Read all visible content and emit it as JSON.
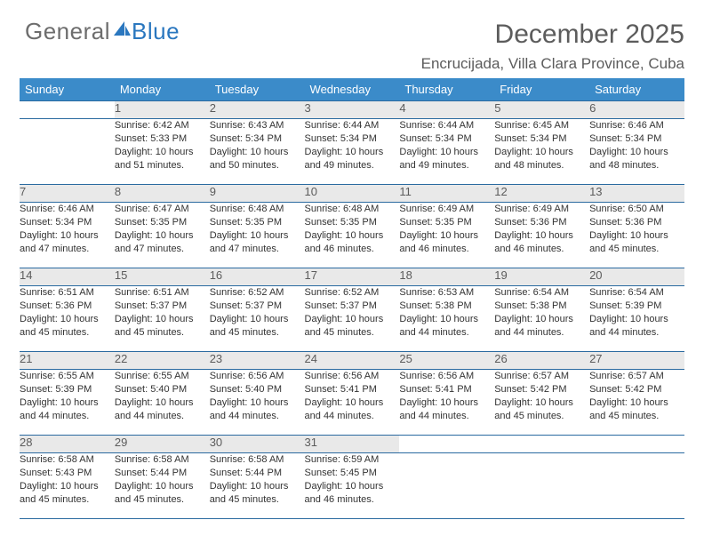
{
  "brand": {
    "part1": "General",
    "part2": "Blue"
  },
  "title": "December 2025",
  "location": "Encrucijada, Villa Clara Province, Cuba",
  "colors": {
    "header_bg": "#3b8bc9",
    "header_fg": "#ffffff",
    "daynum_bg": "#e9e9e9",
    "rule": "#2a6aa0",
    "text": "#333333",
    "muted": "#5c5c5c",
    "logo_gray": "#6d6d6d",
    "logo_blue": "#2a77bf",
    "page_bg": "#ffffff"
  },
  "font": {
    "title_size": 30,
    "location_size": 17,
    "th_size": 13,
    "cell_size": 11,
    "daynum_size": 13
  },
  "weekdays": [
    "Sunday",
    "Monday",
    "Tuesday",
    "Wednesday",
    "Thursday",
    "Friday",
    "Saturday"
  ],
  "weeks": [
    [
      {
        "day": "",
        "l1": "",
        "l2": "",
        "l3": ""
      },
      {
        "day": "1",
        "l1": "Sunrise: 6:42 AM",
        "l2": "Sunset: 5:33 PM",
        "l3": "Daylight: 10 hours and 51 minutes."
      },
      {
        "day": "2",
        "l1": "Sunrise: 6:43 AM",
        "l2": "Sunset: 5:34 PM",
        "l3": "Daylight: 10 hours and 50 minutes."
      },
      {
        "day": "3",
        "l1": "Sunrise: 6:44 AM",
        "l2": "Sunset: 5:34 PM",
        "l3": "Daylight: 10 hours and 49 minutes."
      },
      {
        "day": "4",
        "l1": "Sunrise: 6:44 AM",
        "l2": "Sunset: 5:34 PM",
        "l3": "Daylight: 10 hours and 49 minutes."
      },
      {
        "day": "5",
        "l1": "Sunrise: 6:45 AM",
        "l2": "Sunset: 5:34 PM",
        "l3": "Daylight: 10 hours and 48 minutes."
      },
      {
        "day": "6",
        "l1": "Sunrise: 6:46 AM",
        "l2": "Sunset: 5:34 PM",
        "l3": "Daylight: 10 hours and 48 minutes."
      }
    ],
    [
      {
        "day": "7",
        "l1": "Sunrise: 6:46 AM",
        "l2": "Sunset: 5:34 PM",
        "l3": "Daylight: 10 hours and 47 minutes."
      },
      {
        "day": "8",
        "l1": "Sunrise: 6:47 AM",
        "l2": "Sunset: 5:35 PM",
        "l3": "Daylight: 10 hours and 47 minutes."
      },
      {
        "day": "9",
        "l1": "Sunrise: 6:48 AM",
        "l2": "Sunset: 5:35 PM",
        "l3": "Daylight: 10 hours and 47 minutes."
      },
      {
        "day": "10",
        "l1": "Sunrise: 6:48 AM",
        "l2": "Sunset: 5:35 PM",
        "l3": "Daylight: 10 hours and 46 minutes."
      },
      {
        "day": "11",
        "l1": "Sunrise: 6:49 AM",
        "l2": "Sunset: 5:35 PM",
        "l3": "Daylight: 10 hours and 46 minutes."
      },
      {
        "day": "12",
        "l1": "Sunrise: 6:49 AM",
        "l2": "Sunset: 5:36 PM",
        "l3": "Daylight: 10 hours and 46 minutes."
      },
      {
        "day": "13",
        "l1": "Sunrise: 6:50 AM",
        "l2": "Sunset: 5:36 PM",
        "l3": "Daylight: 10 hours and 45 minutes."
      }
    ],
    [
      {
        "day": "14",
        "l1": "Sunrise: 6:51 AM",
        "l2": "Sunset: 5:36 PM",
        "l3": "Daylight: 10 hours and 45 minutes."
      },
      {
        "day": "15",
        "l1": "Sunrise: 6:51 AM",
        "l2": "Sunset: 5:37 PM",
        "l3": "Daylight: 10 hours and 45 minutes."
      },
      {
        "day": "16",
        "l1": "Sunrise: 6:52 AM",
        "l2": "Sunset: 5:37 PM",
        "l3": "Daylight: 10 hours and 45 minutes."
      },
      {
        "day": "17",
        "l1": "Sunrise: 6:52 AM",
        "l2": "Sunset: 5:37 PM",
        "l3": "Daylight: 10 hours and 45 minutes."
      },
      {
        "day": "18",
        "l1": "Sunrise: 6:53 AM",
        "l2": "Sunset: 5:38 PM",
        "l3": "Daylight: 10 hours and 44 minutes."
      },
      {
        "day": "19",
        "l1": "Sunrise: 6:54 AM",
        "l2": "Sunset: 5:38 PM",
        "l3": "Daylight: 10 hours and 44 minutes."
      },
      {
        "day": "20",
        "l1": "Sunrise: 6:54 AM",
        "l2": "Sunset: 5:39 PM",
        "l3": "Daylight: 10 hours and 44 minutes."
      }
    ],
    [
      {
        "day": "21",
        "l1": "Sunrise: 6:55 AM",
        "l2": "Sunset: 5:39 PM",
        "l3": "Daylight: 10 hours and 44 minutes."
      },
      {
        "day": "22",
        "l1": "Sunrise: 6:55 AM",
        "l2": "Sunset: 5:40 PM",
        "l3": "Daylight: 10 hours and 44 minutes."
      },
      {
        "day": "23",
        "l1": "Sunrise: 6:56 AM",
        "l2": "Sunset: 5:40 PM",
        "l3": "Daylight: 10 hours and 44 minutes."
      },
      {
        "day": "24",
        "l1": "Sunrise: 6:56 AM",
        "l2": "Sunset: 5:41 PM",
        "l3": "Daylight: 10 hours and 44 minutes."
      },
      {
        "day": "25",
        "l1": "Sunrise: 6:56 AM",
        "l2": "Sunset: 5:41 PM",
        "l3": "Daylight: 10 hours and 44 minutes."
      },
      {
        "day": "26",
        "l1": "Sunrise: 6:57 AM",
        "l2": "Sunset: 5:42 PM",
        "l3": "Daylight: 10 hours and 45 minutes."
      },
      {
        "day": "27",
        "l1": "Sunrise: 6:57 AM",
        "l2": "Sunset: 5:42 PM",
        "l3": "Daylight: 10 hours and 45 minutes."
      }
    ],
    [
      {
        "day": "28",
        "l1": "Sunrise: 6:58 AM",
        "l2": "Sunset: 5:43 PM",
        "l3": "Daylight: 10 hours and 45 minutes."
      },
      {
        "day": "29",
        "l1": "Sunrise: 6:58 AM",
        "l2": "Sunset: 5:44 PM",
        "l3": "Daylight: 10 hours and 45 minutes."
      },
      {
        "day": "30",
        "l1": "Sunrise: 6:58 AM",
        "l2": "Sunset: 5:44 PM",
        "l3": "Daylight: 10 hours and 45 minutes."
      },
      {
        "day": "31",
        "l1": "Sunrise: 6:59 AM",
        "l2": "Sunset: 5:45 PM",
        "l3": "Daylight: 10 hours and 46 minutes."
      },
      {
        "day": "",
        "l1": "",
        "l2": "",
        "l3": ""
      },
      {
        "day": "",
        "l1": "",
        "l2": "",
        "l3": ""
      },
      {
        "day": "",
        "l1": "",
        "l2": "",
        "l3": ""
      }
    ]
  ]
}
